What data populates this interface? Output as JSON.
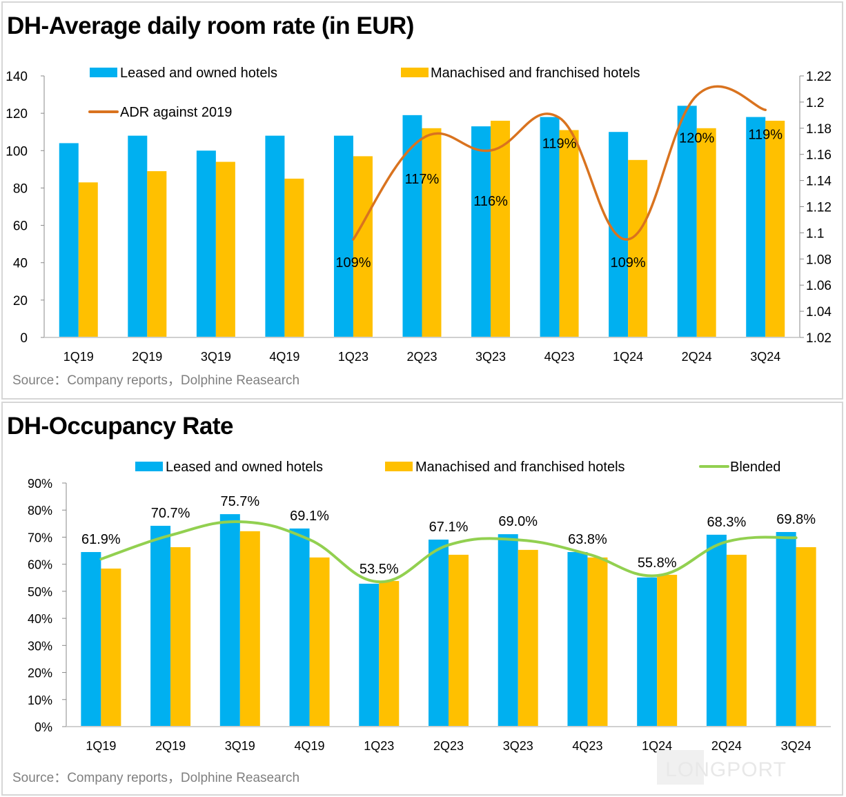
{
  "chart_data": [
    {
      "type": "bar",
      "title": "DH-Average daily room rate (in EUR)",
      "source": "Source：Company reports，Dolphine Reasearch",
      "categories": [
        "1Q19",
        "2Q19",
        "3Q19",
        "4Q19",
        "1Q23",
        "2Q23",
        "3Q23",
        "4Q23",
        "1Q24",
        "2Q24",
        "3Q24"
      ],
      "series": [
        {
          "name": "Leased and owned hotels",
          "type": "bar",
          "axis": "left",
          "color": "#00B0F0",
          "values": [
            104,
            108,
            100,
            108,
            108,
            119,
            113,
            118,
            110,
            124,
            118
          ]
        },
        {
          "name": "Manachised and franchised hotels",
          "type": "bar",
          "axis": "left",
          "color": "#FFC000",
          "values": [
            83,
            89,
            94,
            85,
            97,
            112,
            116,
            111,
            95,
            112,
            116
          ]
        },
        {
          "name": "ADR against 2019",
          "type": "line",
          "axis": "right",
          "color": "#D9731F",
          "values": [
            null,
            null,
            null,
            null,
            1.095,
            1.172,
            1.163,
            1.188,
            1.095,
            1.205,
            1.194
          ],
          "labels": [
            null,
            null,
            null,
            null,
            "109%",
            "117%",
            "116%",
            "119%",
            "109%",
            "120%",
            "119%"
          ]
        }
      ],
      "ylim_left": [
        0,
        140
      ],
      "yticks_left": [
        "0",
        "20",
        "40",
        "60",
        "80",
        "100",
        "120",
        "140"
      ],
      "ylim_right": [
        1.02,
        1.22
      ],
      "yticks_right": [
        "1.02",
        "1.04",
        "1.06",
        "1.08",
        "1.1",
        "1.12",
        "1.14",
        "1.16",
        "1.18",
        "1.2",
        "1.22"
      ],
      "legend": "top",
      "grid": false
    },
    {
      "type": "bar",
      "title": "DH-Occupancy Rate",
      "source": "Source：Company reports，Dolphine Reasearch",
      "categories": [
        "1Q19",
        "2Q19",
        "3Q19",
        "4Q19",
        "1Q23",
        "2Q23",
        "3Q23",
        "4Q23",
        "1Q24",
        "2Q24",
        "3Q24"
      ],
      "series": [
        {
          "name": "Leased and owned hotels",
          "type": "bar",
          "color": "#00B0F0",
          "values": [
            64.5,
            74.2,
            78.5,
            73.2,
            52.8,
            69.1,
            71.1,
            64.5,
            55.1,
            70.9,
            71.9
          ]
        },
        {
          "name": "Manachised and franchised hotels",
          "type": "bar",
          "color": "#FFC000",
          "values": [
            58.4,
            66.3,
            72.2,
            62.5,
            53.8,
            63.5,
            65.3,
            62.5,
            56.1,
            63.5,
            66.3
          ]
        },
        {
          "name": "Blended",
          "type": "line",
          "color": "#92D050",
          "values": [
            61.9,
            70.7,
            75.7,
            69.1,
            53.5,
            67.1,
            69.0,
            63.8,
            55.8,
            68.3,
            69.8
          ],
          "labels": [
            "61.9%",
            "70.7%",
            "75.7%",
            "69.1%",
            "53.5%",
            "67.1%",
            "69.0%",
            "63.8%",
            "55.8%",
            "68.3%",
            "69.8%"
          ]
        }
      ],
      "ylim": [
        0,
        90
      ],
      "yticks": [
        "0%",
        "10%",
        "20%",
        "30%",
        "40%",
        "50%",
        "60%",
        "70%",
        "80%",
        "90%"
      ],
      "legend": "top",
      "grid": false
    }
  ],
  "watermark": "LONGPORT"
}
